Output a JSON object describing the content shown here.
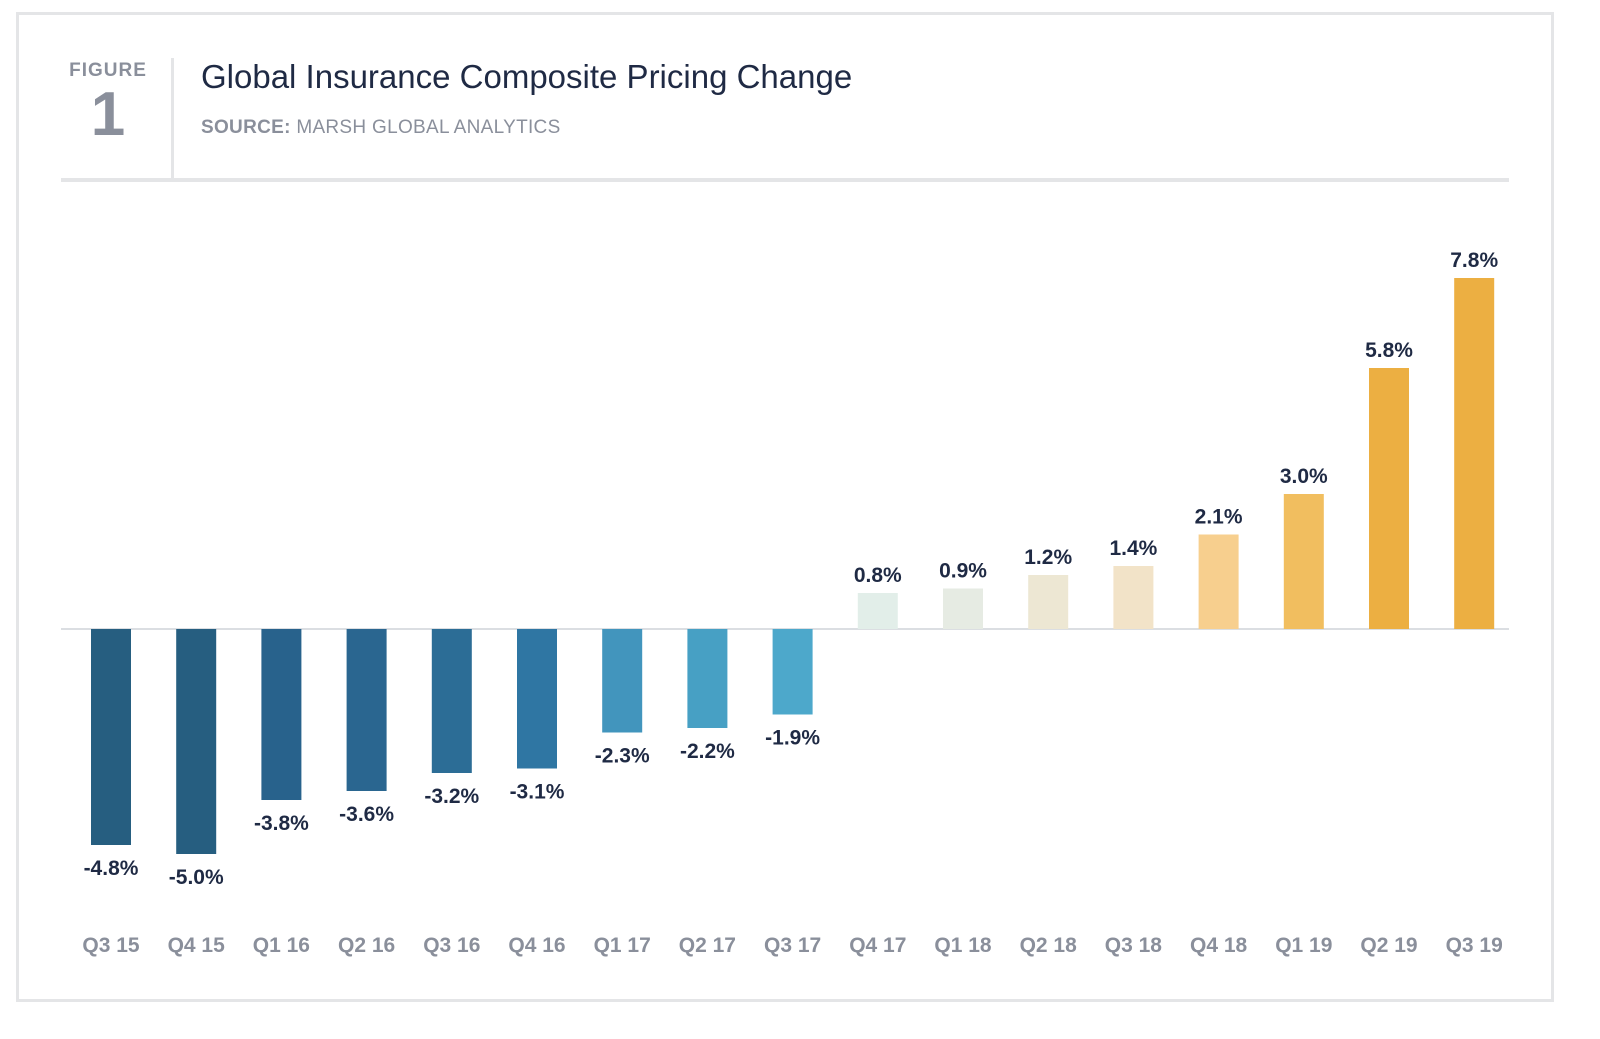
{
  "figure": {
    "label": "FIGURE",
    "number": "1"
  },
  "title": "Global Insurance Composite Pricing Change",
  "source": {
    "prefix": "SOURCE:",
    "text": "MARSH GLOBAL ANALYTICS"
  },
  "colors": {
    "value_label": "#1f2a44",
    "category_label": "#8a8f9b",
    "baseline": "#cfd3d8"
  },
  "chart_data": {
    "type": "bar",
    "title": "Global Insurance Composite Pricing Change",
    "xlabel": "",
    "ylabel": "",
    "categories": [
      "Q3 15",
      "Q4 15",
      "Q1 16",
      "Q2 16",
      "Q3 16",
      "Q4 16",
      "Q1 17",
      "Q2 17",
      "Q3 17",
      "Q4 17",
      "Q1 18",
      "Q2 18",
      "Q3 18",
      "Q4 18",
      "Q1 19",
      "Q2 19",
      "Q3 19"
    ],
    "values": [
      -4.8,
      -5.0,
      -3.8,
      -3.6,
      -3.2,
      -3.1,
      -2.3,
      -2.2,
      -1.9,
      0.8,
      0.9,
      1.2,
      1.4,
      2.1,
      3.0,
      5.8,
      7.8
    ],
    "labels": [
      "-4.8%",
      "-5.0%",
      "-3.8%",
      "-3.6%",
      "-3.2%",
      "-3.1%",
      "-2.3%",
      "-2.2%",
      "-1.9%",
      "0.8%",
      "0.9%",
      "1.2%",
      "1.4%",
      "2.1%",
      "3.0%",
      "5.8%",
      "7.8%"
    ],
    "bar_colors": [
      "#265e80",
      "#265e80",
      "#28628c",
      "#2a6690",
      "#2c6d96",
      "#2f76a3",
      "#4295bd",
      "#47a0c4",
      "#4da8cb",
      "#e2eee9",
      "#e6ebe3",
      "#ede7d3",
      "#f2e3c8",
      "#f7cf8e",
      "#f1be5f",
      "#ecaf42",
      "#ecaf42"
    ],
    "ylim": [
      -5.5,
      8.2
    ],
    "grid": false,
    "legend": "none"
  }
}
